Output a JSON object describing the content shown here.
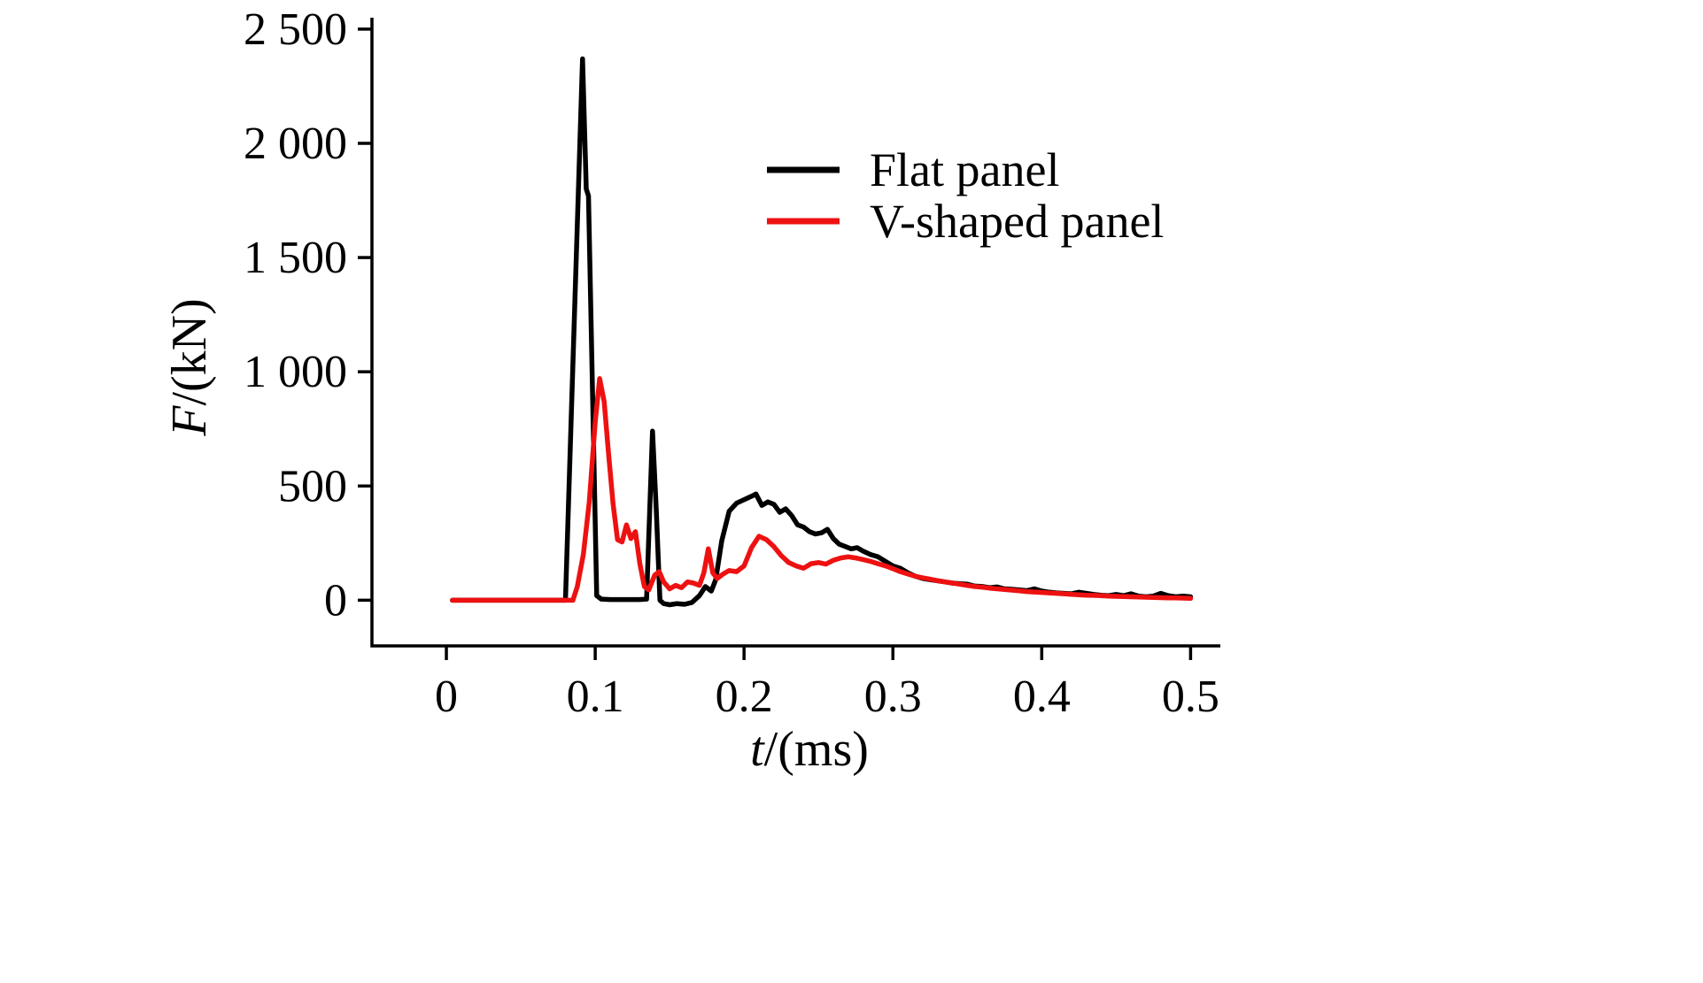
{
  "chart_data": {
    "type": "line",
    "title": "",
    "xlabel": {
      "italic": "t",
      "rest": "/(ms)"
    },
    "ylabel": {
      "italic": "F",
      "rest": "/(kN)"
    },
    "xlim": [
      -0.05,
      0.52
    ],
    "ylim": [
      -200,
      2550
    ],
    "grid": false,
    "axis_color": "#000000",
    "legend": {
      "position": "upper-right"
    },
    "x_ticks": {
      "values": [
        0,
        0.1,
        0.2,
        0.3,
        0.4,
        0.5
      ],
      "labels": [
        "0",
        "0.1",
        "0.2",
        "0.3",
        "0.4",
        "0.5"
      ]
    },
    "y_ticks": {
      "values": [
        0,
        500,
        1000,
        1500,
        2000,
        2500
      ],
      "labels": [
        "0",
        "500",
        "1 000",
        "1 500",
        "2 000",
        "2 500"
      ]
    },
    "series": [
      {
        "name": "Flat panel",
        "color": "#000000",
        "points": [
          [
            0.004,
            0
          ],
          [
            0.02,
            0
          ],
          [
            0.04,
            0
          ],
          [
            0.06,
            0
          ],
          [
            0.078,
            0
          ],
          [
            0.08,
            0
          ],
          [
            0.0915,
            2370
          ],
          [
            0.094,
            1800
          ],
          [
            0.0955,
            1770
          ],
          [
            0.101,
            20
          ],
          [
            0.104,
            5
          ],
          [
            0.11,
            3
          ],
          [
            0.12,
            3
          ],
          [
            0.13,
            3
          ],
          [
            0.1345,
            5
          ],
          [
            0.1385,
            740
          ],
          [
            0.141,
            400
          ],
          [
            0.1435,
            0
          ],
          [
            0.146,
            -15
          ],
          [
            0.15,
            -20
          ],
          [
            0.155,
            -15
          ],
          [
            0.16,
            -18
          ],
          [
            0.165,
            -10
          ],
          [
            0.17,
            20
          ],
          [
            0.174,
            60
          ],
          [
            0.178,
            40
          ],
          [
            0.181,
            90
          ],
          [
            0.185,
            260
          ],
          [
            0.19,
            390
          ],
          [
            0.195,
            425
          ],
          [
            0.2,
            440
          ],
          [
            0.205,
            455
          ],
          [
            0.208,
            465
          ],
          [
            0.212,
            415
          ],
          [
            0.216,
            430
          ],
          [
            0.22,
            420
          ],
          [
            0.224,
            385
          ],
          [
            0.228,
            400
          ],
          [
            0.232,
            370
          ],
          [
            0.236,
            330
          ],
          [
            0.24,
            320
          ],
          [
            0.244,
            300
          ],
          [
            0.248,
            290
          ],
          [
            0.252,
            295
          ],
          [
            0.256,
            310
          ],
          [
            0.26,
            270
          ],
          [
            0.264,
            245
          ],
          [
            0.268,
            235
          ],
          [
            0.272,
            225
          ],
          [
            0.276,
            230
          ],
          [
            0.28,
            215
          ],
          [
            0.285,
            200
          ],
          [
            0.29,
            190
          ],
          [
            0.295,
            170
          ],
          [
            0.3,
            150
          ],
          [
            0.305,
            140
          ],
          [
            0.31,
            120
          ],
          [
            0.315,
            105
          ],
          [
            0.32,
            95
          ],
          [
            0.325,
            90
          ],
          [
            0.33,
            85
          ],
          [
            0.335,
            80
          ],
          [
            0.34,
            75
          ],
          [
            0.345,
            72
          ],
          [
            0.35,
            70
          ],
          [
            0.355,
            62
          ],
          [
            0.36,
            60
          ],
          [
            0.365,
            55
          ],
          [
            0.37,
            58
          ],
          [
            0.375,
            50
          ],
          [
            0.38,
            48
          ],
          [
            0.385,
            45
          ],
          [
            0.39,
            42
          ],
          [
            0.395,
            50
          ],
          [
            0.4,
            40
          ],
          [
            0.405,
            35
          ],
          [
            0.41,
            32
          ],
          [
            0.415,
            30
          ],
          [
            0.42,
            28
          ],
          [
            0.425,
            35
          ],
          [
            0.43,
            30
          ],
          [
            0.435,
            25
          ],
          [
            0.44,
            22
          ],
          [
            0.445,
            20
          ],
          [
            0.45,
            25
          ],
          [
            0.455,
            20
          ],
          [
            0.46,
            28
          ],
          [
            0.465,
            18
          ],
          [
            0.47,
            15
          ],
          [
            0.475,
            18
          ],
          [
            0.48,
            30
          ],
          [
            0.485,
            20
          ],
          [
            0.49,
            15
          ],
          [
            0.495,
            18
          ],
          [
            0.5,
            15
          ]
        ]
      },
      {
        "name": "V-shaped panel",
        "color": "#ee1111",
        "points": [
          [
            0.004,
            0
          ],
          [
            0.02,
            0
          ],
          [
            0.04,
            0
          ],
          [
            0.06,
            0
          ],
          [
            0.08,
            0
          ],
          [
            0.085,
            0
          ],
          [
            0.088,
            60
          ],
          [
            0.092,
            200
          ],
          [
            0.096,
            430
          ],
          [
            0.1,
            780
          ],
          [
            0.103,
            970
          ],
          [
            0.106,
            870
          ],
          [
            0.109,
            640
          ],
          [
            0.112,
            420
          ],
          [
            0.115,
            265
          ],
          [
            0.118,
            255
          ],
          [
            0.121,
            330
          ],
          [
            0.124,
            270
          ],
          [
            0.127,
            300
          ],
          [
            0.13,
            160
          ],
          [
            0.133,
            60
          ],
          [
            0.136,
            45
          ],
          [
            0.14,
            110
          ],
          [
            0.143,
            125
          ],
          [
            0.146,
            80
          ],
          [
            0.15,
            50
          ],
          [
            0.154,
            65
          ],
          [
            0.158,
            55
          ],
          [
            0.162,
            80
          ],
          [
            0.166,
            75
          ],
          [
            0.17,
            65
          ],
          [
            0.173,
            120
          ],
          [
            0.176,
            225
          ],
          [
            0.179,
            120
          ],
          [
            0.182,
            95
          ],
          [
            0.186,
            115
          ],
          [
            0.19,
            130
          ],
          [
            0.195,
            125
          ],
          [
            0.2,
            150
          ],
          [
            0.205,
            230
          ],
          [
            0.21,
            280
          ],
          [
            0.215,
            265
          ],
          [
            0.22,
            235
          ],
          [
            0.225,
            195
          ],
          [
            0.23,
            165
          ],
          [
            0.235,
            150
          ],
          [
            0.24,
            140
          ],
          [
            0.245,
            160
          ],
          [
            0.25,
            165
          ],
          [
            0.255,
            158
          ],
          [
            0.26,
            175
          ],
          [
            0.265,
            185
          ],
          [
            0.27,
            190
          ],
          [
            0.275,
            185
          ],
          [
            0.28,
            178
          ],
          [
            0.285,
            170
          ],
          [
            0.29,
            160
          ],
          [
            0.295,
            150
          ],
          [
            0.3,
            138
          ],
          [
            0.305,
            125
          ],
          [
            0.31,
            115
          ],
          [
            0.315,
            105
          ],
          [
            0.32,
            98
          ],
          [
            0.325,
            92
          ],
          [
            0.33,
            85
          ],
          [
            0.335,
            80
          ],
          [
            0.34,
            75
          ],
          [
            0.345,
            70
          ],
          [
            0.35,
            65
          ],
          [
            0.355,
            60
          ],
          [
            0.36,
            57
          ],
          [
            0.365,
            53
          ],
          [
            0.37,
            50
          ],
          [
            0.375,
            47
          ],
          [
            0.38,
            44
          ],
          [
            0.385,
            41
          ],
          [
            0.39,
            38
          ],
          [
            0.395,
            36
          ],
          [
            0.4,
            34
          ],
          [
            0.405,
            32
          ],
          [
            0.41,
            30
          ],
          [
            0.415,
            28
          ],
          [
            0.42,
            26
          ],
          [
            0.425,
            24
          ],
          [
            0.43,
            22
          ],
          [
            0.435,
            21
          ],
          [
            0.44,
            20
          ],
          [
            0.445,
            18
          ],
          [
            0.45,
            17
          ],
          [
            0.455,
            16
          ],
          [
            0.46,
            15
          ],
          [
            0.465,
            14
          ],
          [
            0.47,
            13
          ],
          [
            0.475,
            12
          ],
          [
            0.48,
            11
          ],
          [
            0.485,
            10
          ],
          [
            0.49,
            10
          ],
          [
            0.495,
            9
          ],
          [
            0.5,
            8
          ]
        ]
      }
    ]
  }
}
